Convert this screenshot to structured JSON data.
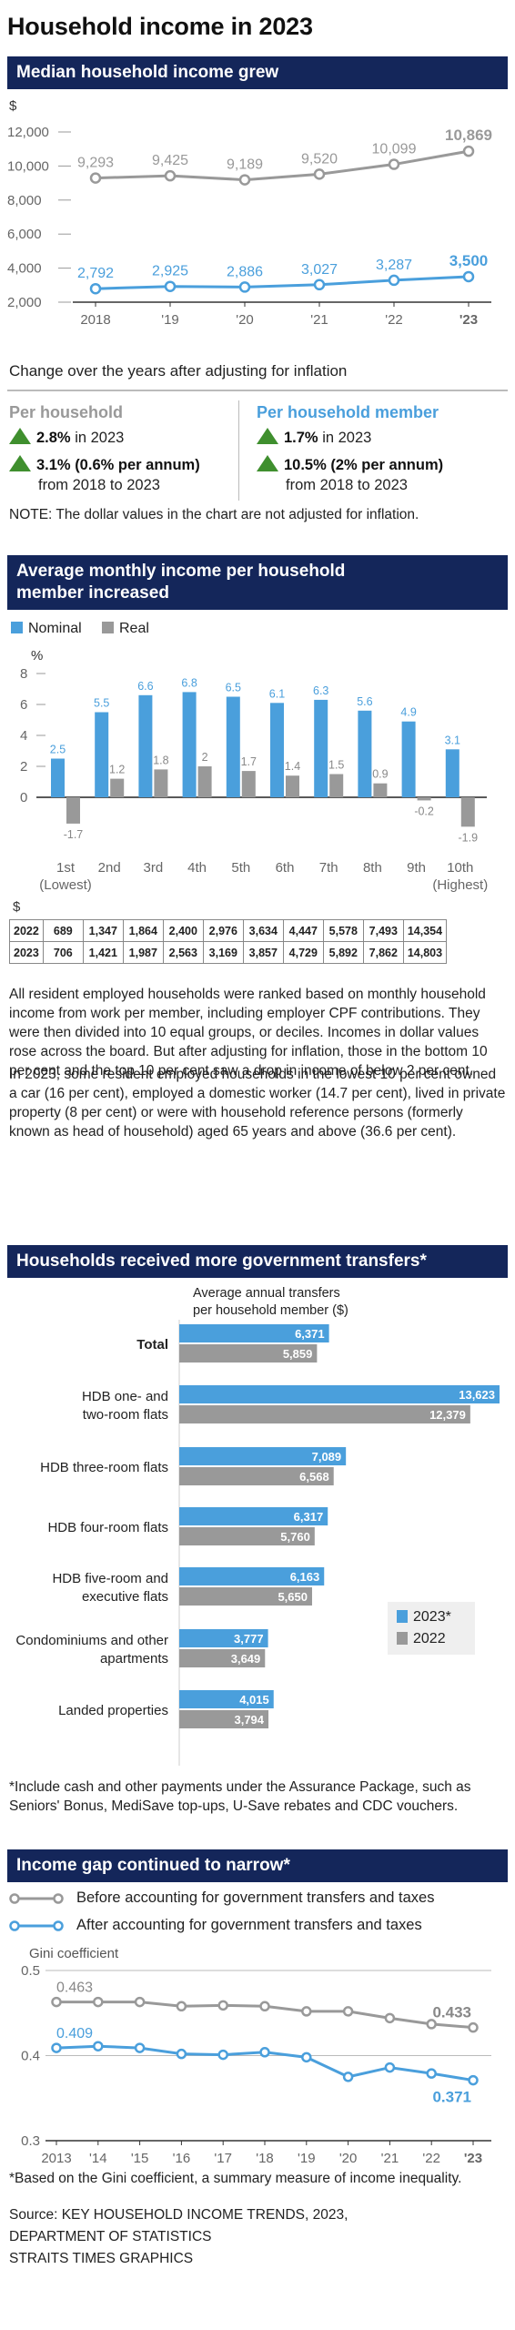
{
  "title": "Household income in 2023",
  "section1": {
    "header": "Median household income grew",
    "unit": "$",
    "note_title": "Change over the years after adjusting for inflation",
    "per_household": {
      "label": "Per household",
      "stat1_value": "2.8%",
      "stat1_rest": " in 2023",
      "stat2_value": "3.1% (0.6% per annum)",
      "stat2_rest": "from 2018 to 2023"
    },
    "per_member": {
      "label": "Per household member",
      "stat1_value": "1.7%",
      "stat1_rest": " in 2023",
      "stat2_value": "10.5% (2% per annum)",
      "stat2_rest": "from 2018 to 2023"
    },
    "note": "NOTE: The dollar values in the chart are not adjusted for inflation.",
    "colors": {
      "household": "#999999",
      "member": "#4a9fdc",
      "up_arrow": "#3f8f2e"
    }
  },
  "section2": {
    "header_line1": "Average monthly income per household",
    "header_line2": "member increased",
    "legend_nominal": "Nominal",
    "legend_real": "Real",
    "unit": "%",
    "table_unit": "$",
    "table": {
      "rows": [
        {
          "year": "2022",
          "values": [
            "689",
            "1,347",
            "1,864",
            "2,400",
            "2,976",
            "3,634",
            "4,447",
            "5,578",
            "7,493",
            "14,354"
          ]
        },
        {
          "year": "2023",
          "values": [
            "706",
            "1,421",
            "1,987",
            "2,563",
            "3,169",
            "3,857",
            "4,729",
            "5,892",
            "7,862",
            "14,803"
          ]
        }
      ]
    },
    "para1": "All resident employed households were ranked based on monthly household income from work per member, including employer CPF contributions. They were then divided into 10 equal groups, or deciles. Incomes in dollar values rose across the board. But after adjusting for inflation, those in the bottom 10 per cent and the top 10 per cent saw a drop in income of below 2 per cent.",
    "para2": "In 2023, some resident employed households in the lowest 10 per cent owned a car (16 per cent), employed a domestic worker (14.7 per cent), lived in private property (8 per cent) or were with household reference persons (formerly known as head of household) aged 65 years and above (36.6 per cent)."
  },
  "section3": {
    "header": "Households received more government transfers*",
    "axis_title_line1": "Average annual transfers",
    "axis_title_line2": "per household member ($)",
    "legend_2023": "2023*",
    "legend_2022": "2022",
    "footnote": "*Include cash and other payments under the Assurance Package, such as Seniors' Bonus, MediSave top-ups, U-Save rebates and CDC vouchers."
  },
  "section4": {
    "header": "Income gap continued to narrow*",
    "legend_before": "Before accounting for government transfers and taxes",
    "legend_after": "After accounting for government transfers and taxes",
    "ylabel": "Gini coefficient",
    "footnote": "*Based on the Gini coefficient, a summary measure of income inequality."
  },
  "credits": {
    "line1": "Source: KEY HOUSEHOLD INCOME TRENDS, 2023,",
    "line2": "DEPARTMENT OF STATISTICS",
    "line3": "STRAITS TIMES GRAPHICS"
  },
  "chart_data": [
    {
      "type": "line",
      "x": [
        "2018",
        "'19",
        "'20",
        "'21",
        "'22",
        "'23"
      ],
      "ylim": [
        2000,
        12000
      ],
      "yticks": [
        "2,000",
        "4,000",
        "6,000",
        "8,000",
        "10,000",
        "12,000"
      ],
      "series": [
        {
          "values": [
            9293,
            9425,
            9189,
            9520,
            10099,
            10869
          ],
          "labels": [
            "9,293",
            "9,425",
            "9,189",
            "9,520",
            "10,099",
            "10,869"
          ],
          "color": "#999999"
        },
        {
          "values": [
            2792,
            2925,
            2886,
            3027,
            3287,
            3500
          ],
          "labels": [
            "2,792",
            "2,925",
            "2,886",
            "3,027",
            "3,287",
            "3,500"
          ],
          "color": "#4a9fdc"
        }
      ]
    },
    {
      "type": "bar",
      "categories": [
        "1st",
        "2nd",
        "3rd",
        "4th",
        "5th",
        "6th",
        "7th",
        "8th",
        "9th",
        "10th"
      ],
      "sublabels": [
        "(Lowest)",
        "",
        "",
        "",
        "",
        "",
        "",
        "",
        "",
        "(Highest)"
      ],
      "ylim": [
        -2,
        8
      ],
      "yticks": [
        "0",
        "2",
        "4",
        "6",
        "8"
      ],
      "series": [
        {
          "name": "Nominal",
          "values": [
            2.5,
            5.5,
            6.6,
            6.8,
            6.5,
            6.1,
            6.3,
            5.6,
            4.9,
            3.1
          ],
          "labels": [
            "2.5",
            "5.5",
            "6.6",
            "6.8",
            "6.5",
            "6.1",
            "6.3",
            "5.6",
            "4.9",
            "3.1"
          ],
          "color": "#4a9fdc"
        },
        {
          "name": "Real",
          "values": [
            -1.7,
            1.2,
            1.8,
            2.0,
            1.7,
            1.4,
            1.5,
            0.9,
            -0.2,
            -1.9
          ],
          "labels": [
            "-1.7",
            "1.2",
            "1.8",
            "2",
            "1.7",
            "1.4",
            "1.5",
            "0.9",
            "-0.2",
            "-1.9"
          ],
          "color": "#999999"
        }
      ]
    },
    {
      "type": "bar",
      "orientation": "horizontal",
      "categories": [
        [
          "Total"
        ],
        [
          "HDB one- and",
          "two-room flats"
        ],
        [
          "HDB three-room flats"
        ],
        [
          "HDB four-room flats"
        ],
        [
          "HDB five-room and",
          "executive flats"
        ],
        [
          "Condominiums and other",
          "apartments"
        ],
        [
          "Landed properties"
        ]
      ],
      "series": [
        {
          "name": "2023*",
          "values": [
            6371,
            13623,
            7089,
            6317,
            6163,
            3777,
            4015
          ],
          "labels": [
            "6,371",
            "13,623",
            "7,089",
            "6,317",
            "6,163",
            "3,777",
            "4,015"
          ],
          "color": "#4a9fdc"
        },
        {
          "name": "2022",
          "values": [
            5859,
            12379,
            6568,
            5760,
            5650,
            3649,
            3794
          ],
          "labels": [
            "5,859",
            "12,379",
            "6,568",
            "5,760",
            "5,650",
            "3,649",
            "3,794"
          ],
          "color": "#999999"
        }
      ]
    },
    {
      "type": "line",
      "x": [
        "2013",
        "'14",
        "'15",
        "'16",
        "'17",
        "'18",
        "'19",
        "'20",
        "'21",
        "'22",
        "'23"
      ],
      "ylim": [
        0.3,
        0.5
      ],
      "yticks": [
        "0.3",
        "0.4",
        "0.5"
      ],
      "series": [
        {
          "name": "Before accounting for government transfers and taxes",
          "values": [
            0.463,
            0.463,
            0.463,
            0.458,
            0.459,
            0.458,
            0.452,
            0.452,
            0.444,
            0.437,
            0.433
          ],
          "color": "#999999"
        },
        {
          "name": "After accounting for government transfers and taxes",
          "values": [
            0.409,
            0.411,
            0.409,
            0.402,
            0.401,
            0.404,
            0.398,
            0.375,
            0.386,
            0.379,
            0.371
          ],
          "color": "#4a9fdc"
        }
      ],
      "value_labels": [
        {
          "series": 0,
          "index": 0,
          "text": "0.463"
        },
        {
          "series": 0,
          "index": 10,
          "text": "0.433"
        },
        {
          "series": 1,
          "index": 0,
          "text": "0.409"
        },
        {
          "series": 1,
          "index": 10,
          "text": "0.371"
        }
      ]
    }
  ]
}
